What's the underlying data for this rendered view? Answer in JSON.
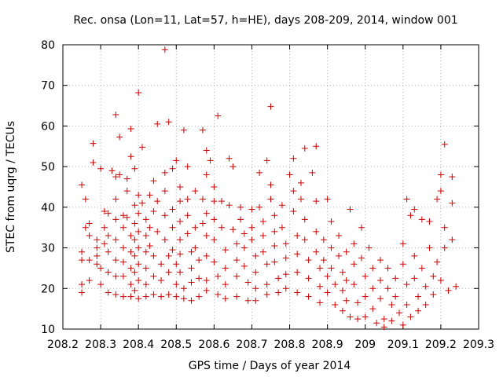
{
  "chart_data": {
    "type": "scatter",
    "title": "Rec. onsa (Lon=11, Lat=57, h=HE), days 208-209, 2014, window 001",
    "xlabel": "GPS time / Days of year 2014",
    "ylabel": "STEC from uqrg / TECUs",
    "xlim": [
      208.2,
      209.3
    ],
    "ylim": [
      10,
      80
    ],
    "xticks": [
      208.2,
      208.3,
      208.4,
      208.5,
      208.6,
      208.7,
      208.8,
      208.9,
      209.0,
      209.1,
      209.2,
      209.3
    ],
    "xtick_labels": [
      "208.2",
      "208.3",
      "208.4",
      "208.5",
      "208.6",
      "208.7",
      "208.8",
      "208.9",
      "209",
      "209.1",
      "209.2",
      "209.3"
    ],
    "yticks": [
      10,
      20,
      30,
      40,
      50,
      60,
      70,
      80
    ],
    "ytick_labels": [
      "10",
      "20",
      "30",
      "40",
      "50",
      "60",
      "70",
      "80"
    ],
    "grid": true,
    "marker": "plus",
    "color": "#cc0000",
    "series": [
      {
        "name": "",
        "points": [
          [
            208.25,
            45.5
          ],
          [
            208.26,
            35
          ],
          [
            208.25,
            29
          ],
          [
            208.25,
            27
          ],
          [
            208.25,
            21
          ],
          [
            208.25,
            19
          ],
          [
            208.26,
            42
          ],
          [
            208.27,
            36
          ],
          [
            208.27,
            33
          ],
          [
            208.27,
            27
          ],
          [
            208.27,
            22
          ],
          [
            208.28,
            55.7
          ],
          [
            208.28,
            51
          ],
          [
            208.29,
            32
          ],
          [
            208.29,
            30
          ],
          [
            208.29,
            28
          ],
          [
            208.29,
            26
          ],
          [
            208.3,
            49.5
          ],
          [
            208.3,
            25
          ],
          [
            208.3,
            21
          ],
          [
            208.31,
            39
          ],
          [
            208.31,
            35
          ],
          [
            208.31,
            31
          ],
          [
            208.32,
            38.5
          ],
          [
            208.32,
            33
          ],
          [
            208.32,
            29
          ],
          [
            208.32,
            24
          ],
          [
            208.32,
            19
          ],
          [
            208.33,
            49
          ],
          [
            208.34,
            62.8
          ],
          [
            208.34,
            47.5
          ],
          [
            208.34,
            42
          ],
          [
            208.34,
            37
          ],
          [
            208.34,
            32
          ],
          [
            208.34,
            27
          ],
          [
            208.34,
            23
          ],
          [
            208.34,
            18.5
          ],
          [
            208.35,
            57.3
          ],
          [
            208.35,
            48
          ],
          [
            208.36,
            38
          ],
          [
            208.36,
            35
          ],
          [
            208.36,
            30
          ],
          [
            208.36,
            26.5
          ],
          [
            208.36,
            23
          ],
          [
            208.36,
            18
          ],
          [
            208.37,
            47
          ],
          [
            208.37,
            44
          ],
          [
            208.37,
            37.5
          ],
          [
            208.38,
            33
          ],
          [
            208.38,
            29
          ],
          [
            208.38,
            25
          ],
          [
            208.38,
            21
          ],
          [
            208.38,
            18
          ],
          [
            208.38,
            59.3
          ],
          [
            208.38,
            52.5
          ],
          [
            208.39,
            49.5
          ],
          [
            208.39,
            40.5
          ],
          [
            208.39,
            36
          ],
          [
            208.39,
            32
          ],
          [
            208.39,
            28
          ],
          [
            208.39,
            24
          ],
          [
            208.39,
            19.5
          ],
          [
            208.4,
            68.2
          ],
          [
            208.4,
            43
          ],
          [
            208.4,
            38.5
          ],
          [
            208.4,
            34
          ],
          [
            208.4,
            30
          ],
          [
            208.4,
            26
          ],
          [
            208.4,
            22
          ],
          [
            208.4,
            17.5
          ],
          [
            208.41,
            54.8
          ],
          [
            208.41,
            41
          ],
          [
            208.42,
            37
          ],
          [
            208.42,
            33
          ],
          [
            208.42,
            29
          ],
          [
            208.42,
            25
          ],
          [
            208.42,
            21
          ],
          [
            208.42,
            18
          ],
          [
            208.43,
            43
          ],
          [
            208.43,
            35
          ],
          [
            208.43,
            30.5
          ],
          [
            208.44,
            46.5
          ],
          [
            208.44,
            39
          ],
          [
            208.44,
            28
          ],
          [
            208.44,
            23
          ],
          [
            208.44,
            18.5
          ],
          [
            208.45,
            60.5
          ],
          [
            208.45,
            41.5
          ],
          [
            208.45,
            34
          ],
          [
            208.46,
            26
          ],
          [
            208.46,
            22
          ],
          [
            208.46,
            18
          ],
          [
            208.47,
            78.8
          ],
          [
            208.47,
            48.5
          ],
          [
            208.47,
            44
          ],
          [
            208.47,
            38
          ],
          [
            208.47,
            32
          ],
          [
            208.48,
            28
          ],
          [
            208.48,
            24
          ],
          [
            208.48,
            18.5
          ],
          [
            208.48,
            61
          ],
          [
            208.49,
            49.5
          ],
          [
            208.49,
            39.5
          ],
          [
            208.49,
            35
          ],
          [
            208.49,
            29.5
          ],
          [
            208.5,
            26
          ],
          [
            208.5,
            21
          ],
          [
            208.5,
            18
          ],
          [
            208.5,
            51.5
          ],
          [
            208.51,
            45
          ],
          [
            208.51,
            41.5
          ],
          [
            208.51,
            36.5
          ],
          [
            208.51,
            32
          ],
          [
            208.51,
            28.5
          ],
          [
            208.51,
            24
          ],
          [
            208.52,
            20
          ],
          [
            208.52,
            17.5
          ],
          [
            208.52,
            59
          ],
          [
            208.53,
            50
          ],
          [
            208.53,
            42
          ],
          [
            208.53,
            38
          ],
          [
            208.53,
            33.5
          ],
          [
            208.54,
            29
          ],
          [
            208.54,
            25
          ],
          [
            208.54,
            21.5
          ],
          [
            208.54,
            17
          ],
          [
            208.55,
            44
          ],
          [
            208.55,
            35
          ],
          [
            208.55,
            30
          ],
          [
            208.56,
            27
          ],
          [
            208.56,
            22.5
          ],
          [
            208.56,
            18
          ],
          [
            208.57,
            59
          ],
          [
            208.57,
            42
          ],
          [
            208.57,
            36
          ],
          [
            208.58,
            54
          ],
          [
            208.58,
            48
          ],
          [
            208.58,
            38.5
          ],
          [
            208.58,
            33
          ],
          [
            208.58,
            28
          ],
          [
            208.58,
            22
          ],
          [
            208.58,
            19.5
          ],
          [
            208.59,
            51.5
          ],
          [
            208.6,
            45
          ],
          [
            208.6,
            41.5
          ],
          [
            208.6,
            37
          ],
          [
            208.6,
            32
          ],
          [
            208.6,
            26.5
          ],
          [
            208.61,
            23
          ],
          [
            208.61,
            18.5
          ],
          [
            208.61,
            62.5
          ],
          [
            208.62,
            41.5
          ],
          [
            208.62,
            35
          ],
          [
            208.63,
            29.5
          ],
          [
            208.63,
            25
          ],
          [
            208.63,
            21
          ],
          [
            208.63,
            17.5
          ],
          [
            208.64,
            52
          ],
          [
            208.64,
            40.5
          ],
          [
            208.65,
            50
          ],
          [
            208.65,
            34.5
          ],
          [
            208.66,
            31
          ],
          [
            208.66,
            27
          ],
          [
            208.66,
            23
          ],
          [
            208.66,
            18
          ],
          [
            208.67,
            40
          ],
          [
            208.67,
            37
          ],
          [
            208.68,
            33.5
          ],
          [
            208.68,
            30
          ],
          [
            208.68,
            25.5
          ],
          [
            208.69,
            21.5
          ],
          [
            208.69,
            17
          ],
          [
            208.7,
            39.5
          ],
          [
            208.7,
            35
          ],
          [
            208.7,
            32
          ],
          [
            208.71,
            28
          ],
          [
            208.71,
            24
          ],
          [
            208.71,
            20
          ],
          [
            208.71,
            17
          ],
          [
            208.72,
            48.5
          ],
          [
            208.72,
            40
          ],
          [
            208.73,
            36.5
          ],
          [
            208.73,
            33
          ],
          [
            208.73,
            29
          ],
          [
            208.74,
            26
          ],
          [
            208.74,
            21
          ],
          [
            208.74,
            18.5
          ],
          [
            208.74,
            51.5
          ],
          [
            208.75,
            64.8
          ],
          [
            208.75,
            45.5
          ],
          [
            208.75,
            42
          ],
          [
            208.76,
            38
          ],
          [
            208.76,
            34
          ],
          [
            208.76,
            30.5
          ],
          [
            208.76,
            26.5
          ],
          [
            208.77,
            22.5
          ],
          [
            208.77,
            19
          ],
          [
            208.78,
            40.5
          ],
          [
            208.78,
            35
          ],
          [
            208.79,
            31
          ],
          [
            208.79,
            27.5
          ],
          [
            208.79,
            23.5
          ],
          [
            208.79,
            20
          ],
          [
            208.8,
            48
          ],
          [
            208.81,
            52
          ],
          [
            208.81,
            44
          ],
          [
            208.81,
            39
          ],
          [
            208.82,
            33
          ],
          [
            208.82,
            28.5
          ],
          [
            208.82,
            24
          ],
          [
            208.82,
            19
          ],
          [
            208.83,
            46
          ],
          [
            208.83,
            42
          ],
          [
            208.84,
            54.5
          ],
          [
            208.84,
            37
          ],
          [
            208.84,
            32
          ],
          [
            208.85,
            27
          ],
          [
            208.85,
            22.5
          ],
          [
            208.85,
            18
          ],
          [
            208.86,
            48.5
          ],
          [
            208.87,
            55
          ],
          [
            208.87,
            41.5
          ],
          [
            208.87,
            34
          ],
          [
            208.87,
            29
          ],
          [
            208.88,
            25
          ],
          [
            208.88,
            20.5
          ],
          [
            208.88,
            16.5
          ],
          [
            208.89,
            32
          ],
          [
            208.89,
            27
          ],
          [
            208.9,
            42
          ],
          [
            208.9,
            23
          ],
          [
            208.9,
            19
          ],
          [
            208.91,
            36.5
          ],
          [
            208.91,
            30
          ],
          [
            208.91,
            25
          ],
          [
            208.92,
            21
          ],
          [
            208.92,
            16
          ],
          [
            208.93,
            33
          ],
          [
            208.93,
            28
          ],
          [
            208.94,
            24
          ],
          [
            208.94,
            19.5
          ],
          [
            208.94,
            14.5
          ],
          [
            208.95,
            29
          ],
          [
            208.95,
            22
          ],
          [
            208.95,
            17
          ],
          [
            208.96,
            13
          ],
          [
            208.96,
            39.5
          ],
          [
            208.97,
            31
          ],
          [
            208.97,
            26
          ],
          [
            208.97,
            21
          ],
          [
            208.98,
            16.5
          ],
          [
            208.98,
            12.5
          ],
          [
            208.99,
            35
          ],
          [
            208.99,
            27.5
          ],
          [
            209.0,
            23
          ],
          [
            209.0,
            18
          ],
          [
            209.0,
            13
          ],
          [
            209.01,
            30
          ],
          [
            209.02,
            25
          ],
          [
            209.02,
            20
          ],
          [
            209.02,
            15
          ],
          [
            209.03,
            11.5
          ],
          [
            209.04,
            27
          ],
          [
            209.04,
            22
          ],
          [
            209.04,
            17.5
          ],
          [
            209.05,
            12.5
          ],
          [
            209.05,
            10.5
          ],
          [
            209.06,
            25
          ],
          [
            209.06,
            20
          ],
          [
            209.07,
            16
          ],
          [
            209.07,
            12
          ],
          [
            209.08,
            22.5
          ],
          [
            209.08,
            18
          ],
          [
            209.09,
            14
          ],
          [
            209.1,
            31
          ],
          [
            209.1,
            26
          ],
          [
            209.1,
            11
          ],
          [
            209.11,
            42
          ],
          [
            209.11,
            21
          ],
          [
            209.11,
            16
          ],
          [
            209.12,
            38
          ],
          [
            209.12,
            13
          ],
          [
            209.13,
            39.5
          ],
          [
            209.13,
            28
          ],
          [
            209.13,
            22.5
          ],
          [
            209.14,
            18
          ],
          [
            209.14,
            14.5
          ],
          [
            209.15,
            37
          ],
          [
            209.15,
            25
          ],
          [
            209.16,
            20.5
          ],
          [
            209.16,
            16
          ],
          [
            209.17,
            36.5
          ],
          [
            209.17,
            30
          ],
          [
            209.18,
            23
          ],
          [
            209.18,
            18.5
          ],
          [
            209.19,
            42
          ],
          [
            209.19,
            26.5
          ],
          [
            209.2,
            48
          ],
          [
            209.2,
            44
          ],
          [
            209.2,
            22
          ],
          [
            209.21,
            55.5
          ],
          [
            209.21,
            35
          ],
          [
            209.21,
            30
          ],
          [
            209.22,
            19.5
          ],
          [
            209.23,
            47.5
          ],
          [
            209.23,
            41
          ],
          [
            209.23,
            32
          ],
          [
            209.24,
            20.5
          ]
        ]
      }
    ]
  }
}
